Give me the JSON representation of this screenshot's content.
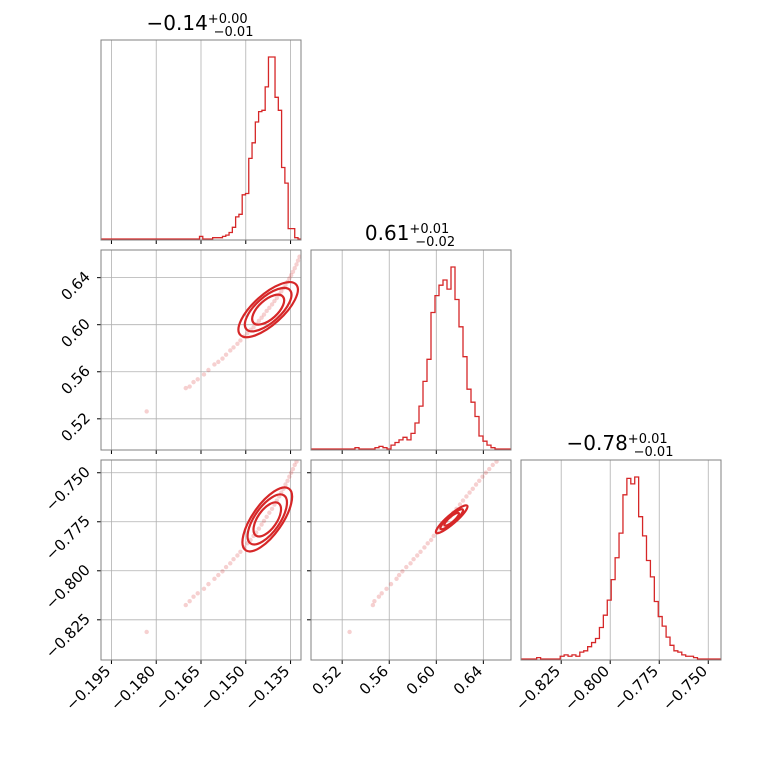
{
  "colors": {
    "accent": "#d62728",
    "grid": "#b0b0b0",
    "frame": "#808080"
  },
  "titles": {
    "p0": {
      "main": "−0.14",
      "sup": "+0.00",
      "sub": "−0.01"
    },
    "p1": {
      "main": "0.61",
      "sup": "+0.01",
      "sub": "−0.02"
    },
    "p2": {
      "main": "−0.78",
      "sup": "+0.01",
      "sub": "−0.01"
    }
  },
  "chart_data": [
    {
      "type": "histogram",
      "parameter": "p0",
      "xlim": [
        -0.1985,
        -0.1315
      ],
      "grid": true,
      "x_ticks": [
        -0.195,
        -0.18,
        -0.165,
        -0.15,
        -0.135
      ],
      "x_tick_labels": [
        "−0.195",
        "−0.180",
        "−0.165",
        "−0.150",
        "−0.135"
      ],
      "bin_edges": [
        -0.1985,
        -0.1974,
        -0.1963,
        -0.1952,
        -0.1941,
        -0.193,
        -0.1919,
        -0.1908,
        -0.1897,
        -0.1886,
        -0.1875,
        -0.1864,
        -0.1853,
        -0.1842,
        -0.1831,
        -0.182,
        -0.1809,
        -0.1798,
        -0.1787,
        -0.1776,
        -0.1765,
        -0.1754,
        -0.1743,
        -0.1732,
        -0.1721,
        -0.171,
        -0.1699,
        -0.1688,
        -0.1677,
        -0.1666,
        -0.1655,
        -0.1644,
        -0.1633,
        -0.1622,
        -0.1611,
        -0.16,
        -0.1589,
        -0.1578,
        -0.1567,
        -0.1556,
        -0.1545,
        -0.1534,
        -0.1523,
        -0.1512,
        -0.1501,
        -0.149,
        -0.1479,
        -0.1468,
        -0.1457,
        -0.1446,
        -0.1435,
        -0.1424,
        -0.1413,
        -0.1402,
        -0.1391,
        -0.138,
        -0.1369,
        -0.1358,
        -0.1347,
        -0.1336,
        -0.1325,
        -0.1314
      ],
      "counts": [
        0,
        0,
        0,
        0,
        0,
        0,
        0,
        0,
        0,
        0,
        0,
        0,
        0,
        0,
        0,
        0,
        0,
        0,
        0,
        0,
        0,
        0,
        0,
        0,
        0,
        0,
        0,
        0,
        0,
        0,
        2,
        0,
        0,
        0,
        1,
        1,
        1,
        2,
        3,
        5,
        9,
        17,
        19,
        34,
        35,
        62,
        74,
        90,
        98,
        99,
        117,
        140,
        140,
        109,
        99,
        55,
        43,
        8,
        8,
        1,
        0,
        0
      ]
    },
    {
      "type": "histogram",
      "parameter": "p1",
      "xlim": [
        0.4935,
        0.6635
      ],
      "grid": true,
      "x_ticks": [
        0.52,
        0.56,
        0.6,
        0.64
      ],
      "x_tick_labels": [
        "0.52",
        "0.56",
        "0.60",
        "0.64"
      ],
      "bin_edges": [
        0.4935,
        0.4969,
        0.5003,
        0.5037,
        0.5071,
        0.5105,
        0.5139,
        0.5173,
        0.5207,
        0.5241,
        0.5275,
        0.5309,
        0.5343,
        0.5377,
        0.5411,
        0.5445,
        0.5479,
        0.5513,
        0.5547,
        0.5581,
        0.5615,
        0.5649,
        0.5683,
        0.5717,
        0.5751,
        0.5785,
        0.5819,
        0.5853,
        0.5887,
        0.5921,
        0.5955,
        0.5989,
        0.6023,
        0.6057,
        0.6091,
        0.6125,
        0.6159,
        0.6193,
        0.6227,
        0.6261,
        0.6295,
        0.6329,
        0.6363,
        0.6397,
        0.6431,
        0.6465,
        0.6499,
        0.6533,
        0.6567,
        0.6601,
        0.6635
      ],
      "counts": [
        0,
        0,
        0,
        0,
        0,
        0,
        0,
        0,
        0,
        0,
        0,
        1,
        0,
        0,
        0,
        0,
        1,
        2,
        1,
        0,
        3,
        5,
        7,
        9,
        7,
        12,
        20,
        33,
        52,
        69,
        105,
        118,
        126,
        130,
        123,
        140,
        115,
        94,
        71,
        46,
        36,
        25,
        10,
        6,
        3,
        1,
        0,
        0,
        0,
        0
      ]
    },
    {
      "type": "histogram",
      "parameter": "p2",
      "xlim": [
        -0.8455,
        -0.7435
      ],
      "grid": true,
      "x_ticks": [
        -0.825,
        -0.8,
        -0.775,
        -0.75
      ],
      "x_tick_labels": [
        "−0.825",
        "−0.800",
        "−0.775",
        "−0.750"
      ],
      "bin_edges": [
        -0.8455,
        -0.8435,
        -0.8415,
        -0.8395,
        -0.8375,
        -0.8355,
        -0.8335,
        -0.8315,
        -0.8295,
        -0.8275,
        -0.8255,
        -0.8235,
        -0.8215,
        -0.8195,
        -0.8175,
        -0.8155,
        -0.8135,
        -0.8115,
        -0.8095,
        -0.8075,
        -0.8055,
        -0.8035,
        -0.8015,
        -0.7995,
        -0.7975,
        -0.7955,
        -0.7935,
        -0.7915,
        -0.7895,
        -0.7875,
        -0.7855,
        -0.7835,
        -0.7815,
        -0.7795,
        -0.7775,
        -0.7755,
        -0.7735,
        -0.7715,
        -0.7695,
        -0.7675,
        -0.7655,
        -0.7635,
        -0.7615,
        -0.7595,
        -0.7575,
        -0.7555,
        -0.7535,
        -0.7515,
        -0.7495,
        -0.7475,
        -0.7455,
        -0.7435
      ],
      "counts": [
        0,
        0,
        0,
        0,
        1,
        0,
        0,
        0,
        0,
        0,
        2,
        3,
        2,
        3,
        2,
        5,
        6,
        9,
        12,
        15,
        23,
        32,
        43,
        58,
        74,
        92,
        120,
        132,
        128,
        133,
        104,
        90,
        72,
        60,
        42,
        31,
        24,
        16,
        10,
        6,
        5,
        3,
        2,
        2,
        1,
        0,
        0,
        0,
        0,
        0,
        0
      ]
    },
    {
      "type": "scatter",
      "x_param": "p0",
      "y_param": "p1",
      "xlim": [
        -0.1985,
        -0.1315
      ],
      "ylim": [
        0.4935,
        0.6635
      ],
      "grid": true,
      "y_ticks": [
        0.52,
        0.56,
        0.6,
        0.64
      ],
      "y_tick_labels": [
        "0.52",
        "0.56",
        "0.60",
        "0.64"
      ],
      "points": [
        [
          -0.1832,
          0.5263
        ],
        [
          -0.1701,
          0.5461
        ],
        [
          -0.1688,
          0.5474
        ],
        [
          -0.1675,
          0.5512
        ],
        [
          -0.1661,
          0.5536
        ],
        [
          -0.164,
          0.5577
        ],
        [
          -0.1625,
          0.5615
        ],
        [
          -0.1605,
          0.5662
        ],
        [
          -0.1592,
          0.5684
        ],
        [
          -0.1578,
          0.5712
        ],
        [
          -0.1566,
          0.5745
        ],
        [
          -0.1552,
          0.5781
        ],
        [
          -0.1541,
          0.5807
        ],
        [
          -0.1528,
          0.5838
        ],
        [
          -0.1518,
          0.5866
        ],
        [
          -0.1505,
          0.5899
        ],
        [
          -0.1495,
          0.5927
        ],
        [
          -0.1484,
          0.5956
        ],
        [
          -0.1474,
          0.5978
        ],
        [
          -0.1465,
          0.6006
        ],
        [
          -0.1456,
          0.6033
        ],
        [
          -0.1447,
          0.606
        ],
        [
          -0.1439,
          0.6086
        ],
        [
          -0.143,
          0.6117
        ],
        [
          -0.1421,
          0.6144
        ],
        [
          -0.1412,
          0.6172
        ],
        [
          -0.1404,
          0.6201
        ],
        [
          -0.1396,
          0.6227
        ],
        [
          -0.1388,
          0.6256
        ],
        [
          -0.1381,
          0.6283
        ],
        [
          -0.1374,
          0.631
        ],
        [
          -0.1367,
          0.6338
        ],
        [
          -0.136,
          0.6365
        ],
        [
          -0.1354,
          0.6393
        ],
        [
          -0.1348,
          0.6421
        ],
        [
          -0.1342,
          0.645
        ],
        [
          -0.1336,
          0.648
        ],
        [
          -0.133,
          0.6512
        ],
        [
          -0.1325,
          0.6545
        ],
        [
          -0.132,
          0.6578
        ]
      ],
      "contours": [
        {
          "center": [
            -0.1425,
            0.6128
          ],
          "semi_axes": [
            0.0066,
            0.0032
          ],
          "angle_deg": 42
        },
        {
          "center": [
            -0.1425,
            0.6128
          ],
          "semi_axes": [
            0.0098,
            0.0042
          ],
          "angle_deg": 42
        },
        {
          "center": [
            -0.1425,
            0.6128
          ],
          "semi_axes": [
            0.0126,
            0.005
          ],
          "angle_deg": 42
        }
      ]
    },
    {
      "type": "scatter",
      "x_param": "p0",
      "y_param": "p2",
      "xlim": [
        -0.1985,
        -0.1315
      ],
      "ylim": [
        -0.8455,
        -0.7435
      ],
      "grid": true,
      "x_ticks": [
        -0.195,
        -0.18,
        -0.165,
        -0.15,
        -0.135
      ],
      "x_tick_labels": [
        "−0.195",
        "−0.180",
        "−0.165",
        "−0.150",
        "−0.135"
      ],
      "y_ticks": [
        -0.825,
        -0.8,
        -0.775,
        -0.75
      ],
      "y_tick_labels": [
        "−0.825",
        "−0.800",
        "−0.775",
        "−0.750"
      ],
      "points": [
        [
          -0.1832,
          -0.8312
        ],
        [
          -0.1701,
          -0.8175
        ],
        [
          -0.1688,
          -0.8155
        ],
        [
          -0.1675,
          -0.8132
        ],
        [
          -0.1661,
          -0.8115
        ],
        [
          -0.164,
          -0.8092
        ],
        [
          -0.1625,
          -0.8068
        ],
        [
          -0.1605,
          -0.8041
        ],
        [
          -0.1592,
          -0.8022
        ],
        [
          -0.1578,
          -0.8003
        ],
        [
          -0.1566,
          -0.7981
        ],
        [
          -0.1552,
          -0.7962
        ],
        [
          -0.1541,
          -0.7941
        ],
        [
          -0.1528,
          -0.7922
        ],
        [
          -0.1518,
          -0.7903
        ],
        [
          -0.1505,
          -0.7881
        ],
        [
          -0.1495,
          -0.786
        ],
        [
          -0.1484,
          -0.7843
        ],
        [
          -0.1474,
          -0.7822
        ],
        [
          -0.1465,
          -0.7805
        ],
        [
          -0.1456,
          -0.7785
        ],
        [
          -0.1447,
          -0.7764
        ],
        [
          -0.1439,
          -0.7746
        ],
        [
          -0.143,
          -0.7725
        ],
        [
          -0.1421,
          -0.7704
        ],
        [
          -0.1412,
          -0.7684
        ],
        [
          -0.1404,
          -0.7662
        ],
        [
          -0.1396,
          -0.7642
        ],
        [
          -0.1388,
          -0.7621
        ],
        [
          -0.1381,
          -0.7601
        ],
        [
          -0.1374,
          -0.7582
        ],
        [
          -0.1367,
          -0.756
        ],
        [
          -0.136,
          -0.7541
        ],
        [
          -0.1354,
          -0.752
        ],
        [
          -0.1348,
          -0.75
        ],
        [
          -0.1342,
          -0.7481
        ],
        [
          -0.1336,
          -0.746
        ],
        [
          -0.133,
          -0.7443
        ],
        [
          -0.1325,
          -0.7425
        ],
        [
          -0.132,
          -0.7418
        ]
      ],
      "contours": [
        {
          "center": [
            -0.1428,
            -0.7738
          ],
          "semi_axes": [
            0.0066,
            0.0032
          ],
          "angle_deg": 55
        },
        {
          "center": [
            -0.1428,
            -0.7738
          ],
          "semi_axes": [
            0.0098,
            0.0042
          ],
          "angle_deg": 55
        },
        {
          "center": [
            -0.1428,
            -0.7738
          ],
          "semi_axes": [
            0.0126,
            0.005
          ],
          "angle_deg": 55
        }
      ]
    },
    {
      "type": "scatter",
      "x_param": "p1",
      "y_param": "p2",
      "xlim": [
        0.4935,
        0.6635
      ],
      "ylim": [
        -0.8455,
        -0.7435
      ],
      "grid": true,
      "x_ticks": [
        0.52,
        0.56,
        0.6,
        0.64
      ],
      "x_tick_labels": [
        "0.52",
        "0.56",
        "0.60",
        "0.64"
      ],
      "points": [
        [
          0.5263,
          -0.8312
        ],
        [
          0.5461,
          -0.8175
        ],
        [
          0.5474,
          -0.8155
        ],
        [
          0.5512,
          -0.8132
        ],
        [
          0.5536,
          -0.8115
        ],
        [
          0.5577,
          -0.8092
        ],
        [
          0.5615,
          -0.8068
        ],
        [
          0.5662,
          -0.8041
        ],
        [
          0.5684,
          -0.8022
        ],
        [
          0.5712,
          -0.8003
        ],
        [
          0.5745,
          -0.7981
        ],
        [
          0.5781,
          -0.7962
        ],
        [
          0.5807,
          -0.7941
        ],
        [
          0.5838,
          -0.7922
        ],
        [
          0.5866,
          -0.7903
        ],
        [
          0.5899,
          -0.7881
        ],
        [
          0.5927,
          -0.786
        ],
        [
          0.5956,
          -0.7843
        ],
        [
          0.5978,
          -0.7822
        ],
        [
          0.6006,
          -0.7805
        ],
        [
          0.6033,
          -0.7785
        ],
        [
          0.606,
          -0.7764
        ],
        [
          0.6086,
          -0.7746
        ],
        [
          0.6117,
          -0.7725
        ],
        [
          0.6144,
          -0.7704
        ],
        [
          0.6172,
          -0.7684
        ],
        [
          0.6201,
          -0.7662
        ],
        [
          0.6227,
          -0.7642
        ],
        [
          0.6256,
          -0.7621
        ],
        [
          0.6283,
          -0.7601
        ],
        [
          0.631,
          -0.7582
        ],
        [
          0.6338,
          -0.756
        ],
        [
          0.6365,
          -0.7541
        ],
        [
          0.6393,
          -0.752
        ],
        [
          0.6421,
          -0.75
        ],
        [
          0.645,
          -0.7481
        ],
        [
          0.648,
          -0.746
        ],
        [
          0.6512,
          -0.7443
        ],
        [
          0.6545,
          -0.7425
        ],
        [
          0.6578,
          -0.7418
        ]
      ],
      "contours": [
        {
          "center": [
            0.6131,
            -0.7737
          ],
          "semi_axes": [
            0.008,
            0.0022
          ],
          "angle_deg": 41
        },
        {
          "center": [
            0.6131,
            -0.7737
          ],
          "semi_axes": [
            0.0125,
            0.003
          ],
          "angle_deg": 41
        },
        {
          "center": [
            0.6131,
            -0.7737
          ],
          "semi_axes": [
            0.0175,
            0.0038
          ],
          "angle_deg": 41
        }
      ]
    }
  ]
}
